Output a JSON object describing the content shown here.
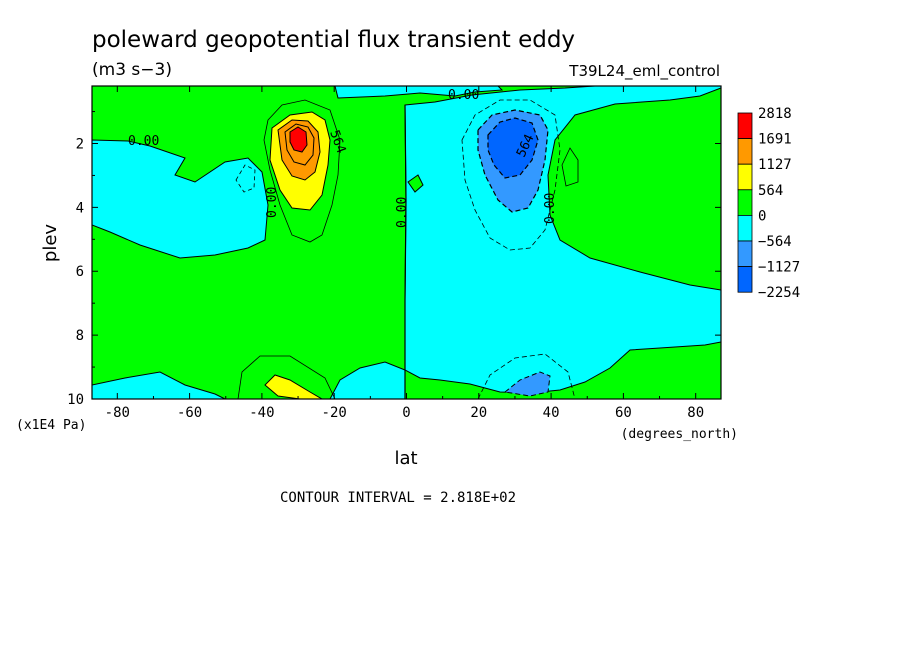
{
  "chart_data": {
    "type": "contour",
    "title": "poleward geopotential flux transient eddy",
    "units": "(m3 s−3)",
    "experiment": "T39L24_eml_control",
    "xlabel": "lat",
    "xunits": "(degrees_north)",
    "ylabel": "plev",
    "yunits": "(x1E4 Pa)",
    "xlim": [
      -87,
      87
    ],
    "ylim": [
      0.2,
      10
    ],
    "y_inverted": true,
    "x_ticks": [
      -80,
      -60,
      -40,
      -20,
      0,
      20,
      40,
      60,
      80
    ],
    "y_ticks": [
      2,
      4,
      6,
      8,
      10
    ],
    "contour_interval": "CONTOUR INTERVAL = 2.818E+02",
    "contour_labels": [
      "0.00",
      "0.00",
      "0.00",
      "0.00",
      "0.00",
      "0.00",
      "564",
      "564"
    ],
    "colorbar": {
      "levels": [
        "2818",
        "1691",
        "1127",
        "564",
        "0",
        "−564",
        "−1127",
        "−2254"
      ],
      "colors": [
        "#ff0000",
        "#ff9900",
        "#ffff00",
        "#00ff00",
        "#00ffff",
        "#3399ff",
        "#0066ff"
      ]
    }
  }
}
